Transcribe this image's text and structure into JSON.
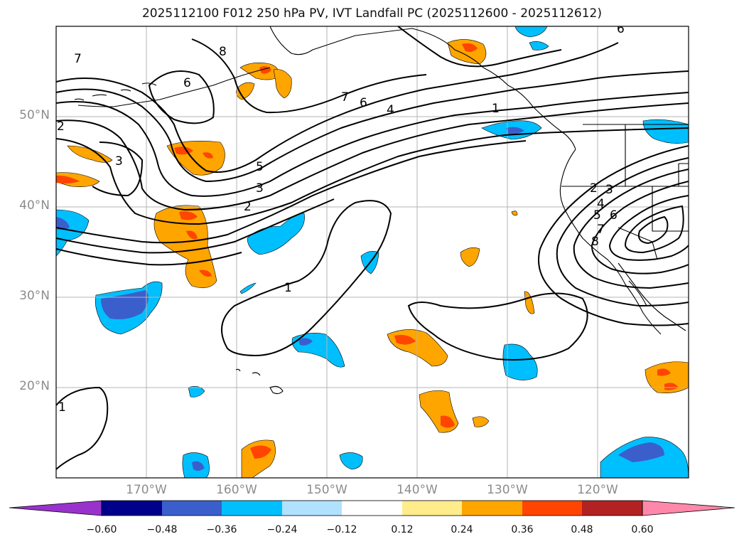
{
  "title": "2025112100 F012 250 hPa PV, IVT Landfall PC (2025112600 - 2025112612)",
  "map": {
    "projection": "equirectangular",
    "lon_range": [
      -180,
      -110
    ],
    "lat_range": [
      10,
      60
    ],
    "lat_ticks": [
      {
        "value": 50,
        "label": "50°N"
      },
      {
        "value": 40,
        "label": "40°N"
      },
      {
        "value": 30,
        "label": "30°N"
      },
      {
        "value": 20,
        "label": "20°N"
      }
    ],
    "lon_ticks": [
      {
        "value": -170,
        "label": "170°W"
      },
      {
        "value": -160,
        "label": "160°W"
      },
      {
        "value": -150,
        "label": "150°W"
      },
      {
        "value": -140,
        "label": "140°W"
      },
      {
        "value": -130,
        "label": "130°W"
      },
      {
        "value": -120,
        "label": "120°W"
      }
    ],
    "grid": true,
    "contour_labels": [
      "7",
      "8",
      "6",
      "7",
      "6",
      "4",
      "1",
      "5",
      "3",
      "2",
      "2",
      "3",
      "1",
      "2",
      "3",
      "4",
      "5",
      "6",
      "7",
      "8",
      "1",
      "6"
    ]
  },
  "colorbar": {
    "levels": [
      "−0.60",
      "−0.48",
      "−0.36",
      "−0.24",
      "−0.12",
      "0.12",
      "0.24",
      "0.36",
      "0.48",
      "0.60"
    ],
    "colors": [
      "#9932cc",
      "#00008b",
      "#3a5fcd",
      "#00bfff",
      "#b0e2ff",
      "#ffffff",
      "#ffec8b",
      "#ffa500",
      "#ff4500",
      "#b22222",
      "#ff88aa"
    ],
    "extend": "both"
  }
}
